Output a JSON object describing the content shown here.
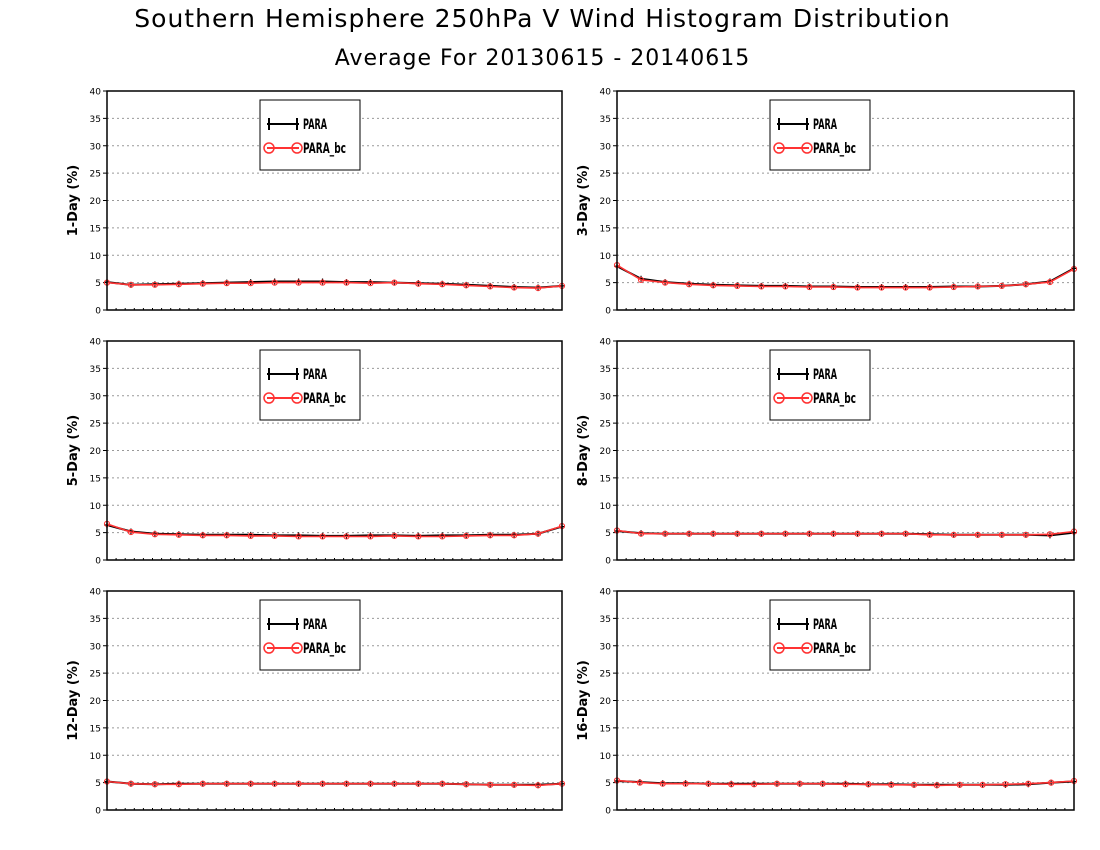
{
  "title": "Southern Hemisphere 250hPa V Wind Histogram Distribution",
  "subtitle": "Average For 20130615 - 20140615",
  "colors": {
    "para": "#000000",
    "para_bc": "#ff3333",
    "grid": "#999999"
  },
  "chart_data": [
    {
      "type": "line",
      "ylabel": "1-Day (%)",
      "ylim": [
        0,
        40
      ],
      "yticks": [
        0,
        5,
        10,
        15,
        20,
        25,
        30,
        35,
        40
      ],
      "grid": true,
      "legend": "top-center",
      "series": [
        {
          "name": "PARA",
          "values": [
            5.1,
            4.6,
            4.7,
            4.8,
            4.9,
            5.0,
            5.1,
            5.2,
            5.2,
            5.2,
            5.1,
            5.1,
            5.0,
            4.9,
            4.8,
            4.6,
            4.4,
            4.2,
            4.1,
            4.4
          ]
        },
        {
          "name": "PARA_bc",
          "values": [
            5.0,
            4.6,
            4.6,
            4.7,
            4.8,
            4.9,
            4.9,
            5.0,
            5.0,
            5.0,
            5.0,
            4.9,
            5.0,
            4.8,
            4.7,
            4.5,
            4.3,
            4.1,
            4.0,
            4.4
          ]
        }
      ]
    },
    {
      "type": "line",
      "ylabel": "3-Day (%)",
      "ylim": [
        0,
        40
      ],
      "yticks": [
        0,
        5,
        10,
        15,
        20,
        25,
        30,
        35,
        40
      ],
      "grid": true,
      "legend": "top-center",
      "series": [
        {
          "name": "PARA",
          "values": [
            8.0,
            5.7,
            5.1,
            4.8,
            4.6,
            4.5,
            4.4,
            4.4,
            4.3,
            4.3,
            4.2,
            4.2,
            4.2,
            4.2,
            4.3,
            4.3,
            4.4,
            4.7,
            5.2,
            7.6
          ]
        },
        {
          "name": "PARA_bc",
          "values": [
            8.2,
            5.5,
            5.0,
            4.7,
            4.5,
            4.4,
            4.3,
            4.3,
            4.2,
            4.2,
            4.1,
            4.1,
            4.1,
            4.1,
            4.2,
            4.3,
            4.4,
            4.7,
            5.1,
            7.5
          ]
        }
      ]
    },
    {
      "type": "line",
      "ylabel": "5-Day (%)",
      "ylim": [
        0,
        40
      ],
      "yticks": [
        0,
        5,
        10,
        15,
        20,
        25,
        30,
        35,
        40
      ],
      "grid": true,
      "legend": "top-center",
      "series": [
        {
          "name": "PARA",
          "values": [
            6.4,
            5.2,
            4.8,
            4.7,
            4.6,
            4.6,
            4.6,
            4.5,
            4.5,
            4.4,
            4.4,
            4.5,
            4.5,
            4.4,
            4.5,
            4.5,
            4.6,
            4.6,
            4.8,
            6.1
          ]
        },
        {
          "name": "PARA_bc",
          "values": [
            6.6,
            5.1,
            4.7,
            4.6,
            4.5,
            4.5,
            4.4,
            4.4,
            4.3,
            4.3,
            4.3,
            4.3,
            4.4,
            4.3,
            4.3,
            4.4,
            4.5,
            4.5,
            4.8,
            6.2
          ]
        }
      ]
    },
    {
      "type": "line",
      "ylabel": "8-Day (%)",
      "ylim": [
        0,
        40
      ],
      "yticks": [
        0,
        5,
        10,
        15,
        20,
        25,
        30,
        35,
        40
      ],
      "grid": true,
      "legend": "top-center",
      "series": [
        {
          "name": "PARA",
          "values": [
            5.3,
            4.9,
            4.8,
            4.8,
            4.8,
            4.8,
            4.8,
            4.8,
            4.8,
            4.8,
            4.8,
            4.8,
            4.8,
            4.7,
            4.6,
            4.6,
            4.6,
            4.6,
            4.5,
            5.0
          ]
        },
        {
          "name": "PARA_bc",
          "values": [
            5.4,
            4.8,
            4.8,
            4.8,
            4.8,
            4.8,
            4.8,
            4.8,
            4.8,
            4.8,
            4.8,
            4.8,
            4.8,
            4.6,
            4.6,
            4.6,
            4.6,
            4.6,
            4.7,
            5.2
          ]
        }
      ]
    },
    {
      "type": "line",
      "ylabel": "12-Day (%)",
      "ylim": [
        0,
        40
      ],
      "yticks": [
        0,
        5,
        10,
        15,
        20,
        25,
        30,
        35,
        40
      ],
      "grid": true,
      "legend": "top-center",
      "series": [
        {
          "name": "PARA",
          "values": [
            5.2,
            4.8,
            4.7,
            4.8,
            4.8,
            4.8,
            4.8,
            4.8,
            4.8,
            4.8,
            4.8,
            4.8,
            4.8,
            4.8,
            4.8,
            4.7,
            4.6,
            4.6,
            4.6,
            4.8
          ]
        },
        {
          "name": "PARA_bc",
          "values": [
            5.2,
            4.8,
            4.7,
            4.7,
            4.8,
            4.8,
            4.8,
            4.8,
            4.8,
            4.8,
            4.8,
            4.8,
            4.8,
            4.8,
            4.8,
            4.7,
            4.6,
            4.6,
            4.5,
            4.8
          ]
        }
      ]
    },
    {
      "type": "line",
      "ylabel": "16-Day (%)",
      "ylim": [
        0,
        40
      ],
      "yticks": [
        0,
        5,
        10,
        15,
        20,
        25,
        30,
        35,
        40
      ],
      "grid": true,
      "legend": "top-center",
      "series": [
        {
          "name": "PARA",
          "values": [
            5.3,
            5.1,
            4.9,
            4.9,
            4.8,
            4.8,
            4.8,
            4.8,
            4.8,
            4.8,
            4.8,
            4.7,
            4.7,
            4.6,
            4.6,
            4.6,
            4.6,
            4.6,
            4.7,
            5.0,
            5.2
          ]
        },
        {
          "name": "PARA_bc",
          "values": [
            5.4,
            5.0,
            4.8,
            4.8,
            4.8,
            4.7,
            4.7,
            4.8,
            4.8,
            4.8,
            4.7,
            4.7,
            4.6,
            4.6,
            4.5,
            4.6,
            4.6,
            4.7,
            4.8,
            5.0,
            5.3
          ]
        }
      ]
    }
  ]
}
